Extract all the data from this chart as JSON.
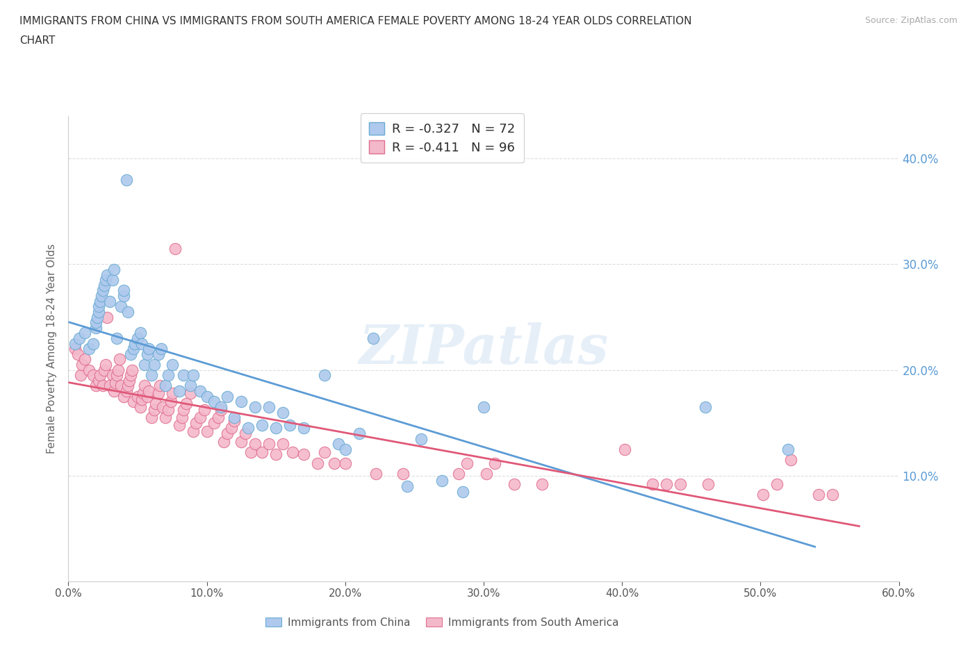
{
  "title_line1": "IMMIGRANTS FROM CHINA VS IMMIGRANTS FROM SOUTH AMERICA FEMALE POVERTY AMONG 18-24 YEAR OLDS CORRELATION",
  "title_line2": "CHART",
  "source": "Source: ZipAtlas.com",
  "ylabel": "Female Poverty Among 18-24 Year Olds",
  "xlim": [
    0.0,
    0.6
  ],
  "ylim": [
    0.0,
    0.44
  ],
  "xticks": [
    0.0,
    0.1,
    0.2,
    0.3,
    0.4,
    0.5,
    0.6
  ],
  "xticklabels": [
    "0.0%",
    "",
    "",
    "",
    "",
    "",
    "60.0%"
  ],
  "yticks": [
    0.0,
    0.1,
    0.2,
    0.3,
    0.4
  ],
  "yticklabels_right": [
    "",
    "10.0%",
    "20.0%",
    "30.0%",
    "40.0%"
  ],
  "china_color": "#aec9ed",
  "china_edge_color": "#6aabd2",
  "china_line_color": "#5b9bd5",
  "sa_color": "#f4b8cb",
  "sa_edge_color": "#e07090",
  "sa_line_color": "#e05878",
  "china_R": -0.327,
  "china_N": 72,
  "sa_R": -0.411,
  "sa_N": 96,
  "legend_r_color": "#e05878",
  "legend_n_color": "#5b9bd5",
  "right_ytick_color": "#5b9bd5",
  "china_x": [
    0.005,
    0.008,
    0.012,
    0.015,
    0.018,
    0.02,
    0.02,
    0.021,
    0.022,
    0.022,
    0.023,
    0.024,
    0.025,
    0.026,
    0.027,
    0.028,
    0.03,
    0.032,
    0.033,
    0.035,
    0.038,
    0.04,
    0.04,
    0.042,
    0.043,
    0.045,
    0.047,
    0.048,
    0.05,
    0.052,
    0.053,
    0.055,
    0.057,
    0.058,
    0.06,
    0.062,
    0.065,
    0.067,
    0.07,
    0.072,
    0.075,
    0.08,
    0.083,
    0.088,
    0.09,
    0.095,
    0.1,
    0.105,
    0.11,
    0.115,
    0.12,
    0.125,
    0.13,
    0.135,
    0.14,
    0.145,
    0.15,
    0.155,
    0.16,
    0.17,
    0.185,
    0.195,
    0.2,
    0.21,
    0.22,
    0.245,
    0.255,
    0.27,
    0.285,
    0.3,
    0.46,
    0.52
  ],
  "china_y": [
    0.225,
    0.23,
    0.235,
    0.22,
    0.225,
    0.24,
    0.245,
    0.25,
    0.255,
    0.26,
    0.265,
    0.27,
    0.275,
    0.28,
    0.285,
    0.29,
    0.265,
    0.285,
    0.295,
    0.23,
    0.26,
    0.27,
    0.275,
    0.38,
    0.255,
    0.215,
    0.22,
    0.225,
    0.23,
    0.235,
    0.225,
    0.205,
    0.215,
    0.22,
    0.195,
    0.205,
    0.215,
    0.22,
    0.185,
    0.195,
    0.205,
    0.18,
    0.195,
    0.185,
    0.195,
    0.18,
    0.175,
    0.17,
    0.165,
    0.175,
    0.155,
    0.17,
    0.145,
    0.165,
    0.148,
    0.165,
    0.145,
    0.16,
    0.148,
    0.145,
    0.195,
    0.13,
    0.125,
    0.14,
    0.23,
    0.09,
    0.135,
    0.095,
    0.085,
    0.165,
    0.165,
    0.125
  ],
  "sa_x": [
    0.005,
    0.007,
    0.009,
    0.01,
    0.012,
    0.015,
    0.018,
    0.02,
    0.022,
    0.023,
    0.025,
    0.026,
    0.027,
    0.028,
    0.03,
    0.032,
    0.033,
    0.034,
    0.035,
    0.036,
    0.037,
    0.038,
    0.04,
    0.042,
    0.043,
    0.044,
    0.045,
    0.046,
    0.047,
    0.05,
    0.052,
    0.053,
    0.054,
    0.055,
    0.057,
    0.058,
    0.06,
    0.062,
    0.063,
    0.065,
    0.066,
    0.068,
    0.07,
    0.072,
    0.074,
    0.075,
    0.077,
    0.08,
    0.082,
    0.083,
    0.085,
    0.088,
    0.09,
    0.092,
    0.095,
    0.098,
    0.1,
    0.105,
    0.108,
    0.11,
    0.112,
    0.115,
    0.118,
    0.12,
    0.125,
    0.128,
    0.132,
    0.135,
    0.14,
    0.145,
    0.15,
    0.155,
    0.162,
    0.17,
    0.18,
    0.185,
    0.192,
    0.2,
    0.222,
    0.242,
    0.282,
    0.288,
    0.302,
    0.308,
    0.322,
    0.342,
    0.402,
    0.422,
    0.432,
    0.442,
    0.462,
    0.502,
    0.512,
    0.522,
    0.542,
    0.552
  ],
  "sa_y": [
    0.22,
    0.215,
    0.195,
    0.205,
    0.21,
    0.2,
    0.195,
    0.185,
    0.19,
    0.195,
    0.185,
    0.2,
    0.205,
    0.25,
    0.185,
    0.195,
    0.18,
    0.188,
    0.195,
    0.2,
    0.21,
    0.185,
    0.175,
    0.18,
    0.185,
    0.19,
    0.195,
    0.2,
    0.17,
    0.175,
    0.165,
    0.172,
    0.178,
    0.185,
    0.175,
    0.18,
    0.155,
    0.162,
    0.168,
    0.178,
    0.185,
    0.165,
    0.155,
    0.162,
    0.17,
    0.178,
    0.315,
    0.148,
    0.155,
    0.162,
    0.168,
    0.178,
    0.142,
    0.15,
    0.155,
    0.162,
    0.142,
    0.15,
    0.155,
    0.162,
    0.132,
    0.14,
    0.145,
    0.152,
    0.132,
    0.14,
    0.122,
    0.13,
    0.122,
    0.13,
    0.12,
    0.13,
    0.122,
    0.12,
    0.112,
    0.122,
    0.112,
    0.112,
    0.102,
    0.102,
    0.102,
    0.112,
    0.102,
    0.112,
    0.092,
    0.092,
    0.125,
    0.092,
    0.092,
    0.092,
    0.092,
    0.082,
    0.092,
    0.115,
    0.082,
    0.082
  ]
}
